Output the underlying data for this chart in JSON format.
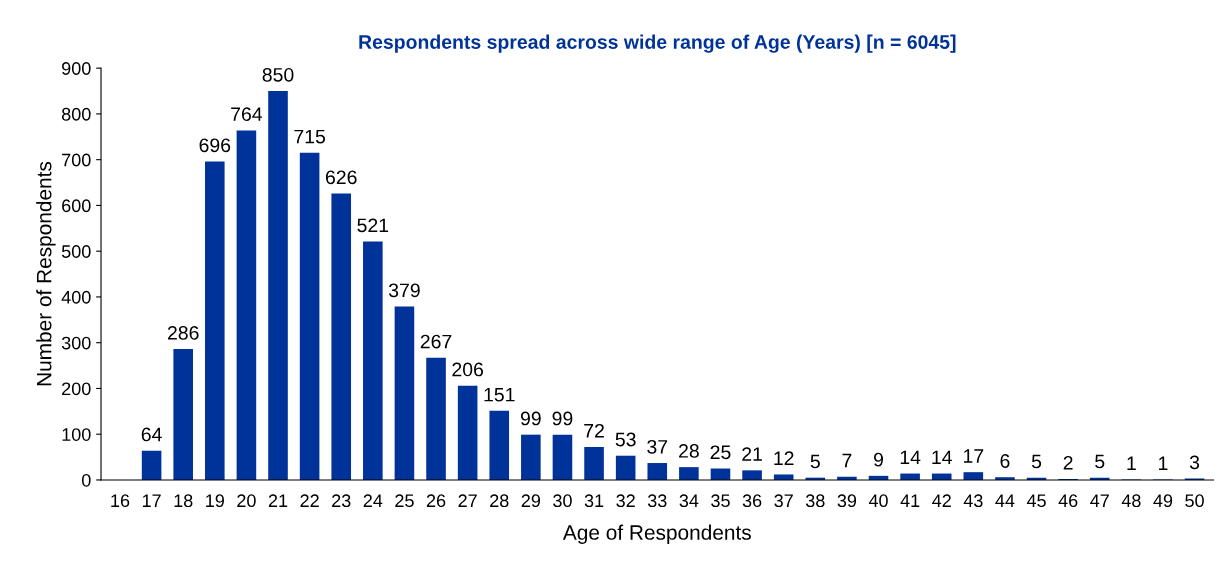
{
  "chart_data": {
    "type": "bar",
    "title": "Respondents spread across wide range of Age (Years) [n = 6045]",
    "xlabel": "Age of Respondents",
    "ylabel": "Number of Respondents",
    "categories": [
      "16",
      "17",
      "18",
      "19",
      "20",
      "21",
      "22",
      "23",
      "24",
      "25",
      "26",
      "27",
      "28",
      "29",
      "30",
      "31",
      "32",
      "33",
      "34",
      "35",
      "36",
      "37",
      "38",
      "39",
      "40",
      "41",
      "42",
      "43",
      "44",
      "45",
      "46",
      "47",
      "48",
      "49",
      "50"
    ],
    "values": [
      null,
      64,
      286,
      696,
      764,
      850,
      715,
      626,
      521,
      379,
      267,
      206,
      151,
      99,
      99,
      72,
      53,
      37,
      28,
      25,
      21,
      12,
      5,
      7,
      9,
      14,
      14,
      17,
      6,
      5,
      2,
      5,
      1,
      1,
      3
    ],
    "color": "#003399",
    "ylim": [
      0,
      900
    ],
    "yticks": [
      0,
      100,
      200,
      300,
      400,
      500,
      600,
      700,
      800,
      900
    ],
    "grid": false,
    "data_labels": true,
    "legend": false
  }
}
